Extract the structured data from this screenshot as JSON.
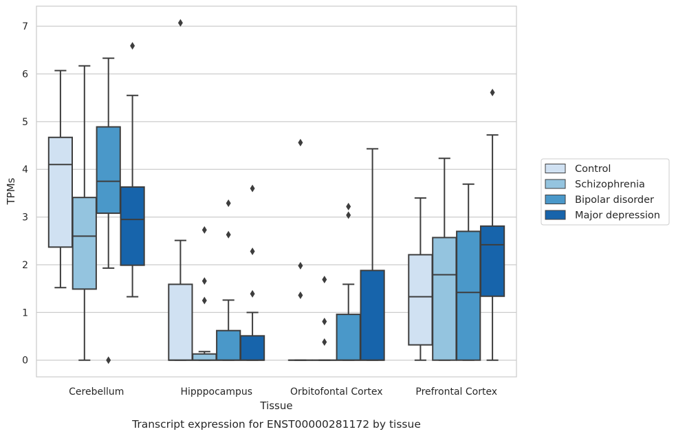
{
  "chart_data": {
    "type": "box",
    "xlabel": "Tissue",
    "ylabel": "TPMs",
    "caption": "Transcript expression for ENST00000281172 by tissue",
    "ylim": [
      -0.35,
      7.42
    ],
    "yticks": [
      0,
      1,
      2,
      3,
      4,
      5,
      6,
      7
    ],
    "grid": true,
    "legend_position": "right",
    "categories": [
      "Cerebellum",
      "Hipppocampus",
      "Orbitofontal Cortex",
      "Prefrontal Cortex"
    ],
    "series": [
      {
        "name": "Control",
        "color": "#d0e1f2",
        "boxes": [
          {
            "whisker_low": 1.52,
            "q1": 2.37,
            "median": 4.1,
            "q3": 4.67,
            "whisker_high": 6.07,
            "outliers": []
          },
          {
            "whisker_low": 0,
            "q1": 0,
            "median": 0,
            "q3": 1.59,
            "whisker_high": 2.51,
            "outliers": [
              7.07
            ]
          },
          {
            "whisker_low": 0,
            "q1": 0,
            "median": 0,
            "q3": 0,
            "whisker_high": 0,
            "outliers": [
              4.56,
              1.98,
              1.36
            ]
          },
          {
            "whisker_low": 0,
            "q1": 0.32,
            "median": 1.33,
            "q3": 2.21,
            "whisker_high": 3.4,
            "outliers": []
          }
        ]
      },
      {
        "name": "Schizophrenia",
        "color": "#94c4df",
        "boxes": [
          {
            "whisker_low": 0,
            "q1": 1.49,
            "median": 2.6,
            "q3": 3.41,
            "whisker_high": 6.17,
            "outliers": []
          },
          {
            "whisker_low": 0,
            "q1": 0,
            "median": 0,
            "q3": 0.13,
            "whisker_high": 0.18,
            "outliers": [
              2.73,
              1.66,
              1.25
            ]
          },
          {
            "whisker_low": 0,
            "q1": 0,
            "median": 0,
            "q3": 0,
            "whisker_high": 0,
            "outliers": [
              1.69,
              0.81,
              0.38
            ]
          },
          {
            "whisker_low": 0,
            "q1": 0,
            "median": 1.79,
            "q3": 2.57,
            "whisker_high": 4.23,
            "outliers": []
          }
        ]
      },
      {
        "name": "Bipolar disorder",
        "color": "#4a98c9",
        "boxes": [
          {
            "whisker_low": 1.93,
            "q1": 3.08,
            "median": 3.75,
            "q3": 4.89,
            "whisker_high": 6.33,
            "outliers": [
              0
            ]
          },
          {
            "whisker_low": 0,
            "q1": 0,
            "median": 0,
            "q3": 0.62,
            "whisker_high": 1.26,
            "outliers": [
              3.29,
              2.63
            ]
          },
          {
            "whisker_low": 0,
            "q1": 0,
            "median": 0,
            "q3": 0.96,
            "whisker_high": 1.59,
            "outliers": [
              3.22,
              3.04
            ]
          },
          {
            "whisker_low": 0,
            "q1": 0,
            "median": 1.42,
            "q3": 2.7,
            "whisker_high": 3.69,
            "outliers": []
          }
        ]
      },
      {
        "name": "Major depression",
        "color": "#1764ab",
        "boxes": [
          {
            "whisker_low": 1.33,
            "q1": 1.99,
            "median": 2.95,
            "q3": 3.63,
            "whisker_high": 5.55,
            "outliers": [
              6.59
            ]
          },
          {
            "whisker_low": 0,
            "q1": 0,
            "median": 0,
            "q3": 0.51,
            "whisker_high": 1.0,
            "outliers": [
              3.6,
              2.28,
              1.39
            ]
          },
          {
            "whisker_low": 0,
            "q1": 0,
            "median": 0,
            "q3": 1.88,
            "whisker_high": 4.43,
            "outliers": []
          },
          {
            "whisker_low": 0,
            "q1": 1.34,
            "median": 2.42,
            "q3": 2.81,
            "whisker_high": 4.72,
            "outliers": [
              5.61
            ]
          }
        ]
      }
    ]
  }
}
